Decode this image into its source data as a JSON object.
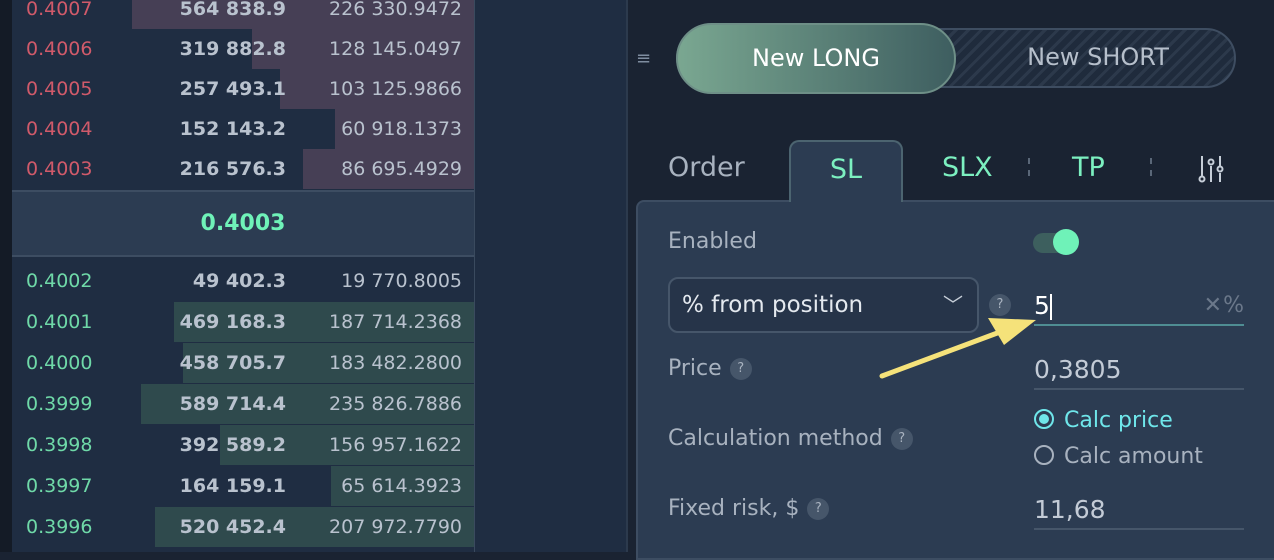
{
  "orderbook": {
    "asks": [
      {
        "price": "0.4007",
        "amount": "564 838.9",
        "total": "226 330.9472",
        "depth": 0.74
      },
      {
        "price": "0.4006",
        "amount": "319 882.8",
        "total": "128 145.0497",
        "depth": 0.48
      },
      {
        "price": "0.4005",
        "amount": "257 493.1",
        "total": "103 125.9866",
        "depth": 0.42
      },
      {
        "price": "0.4004",
        "amount": "152 143.2",
        "total": "60 918.1373",
        "depth": 0.3
      },
      {
        "price": "0.4003",
        "amount": "216 576.3",
        "total": "86 695.4929",
        "depth": 0.37
      }
    ],
    "last_price": "0.4003",
    "bids": [
      {
        "price": "0.4002",
        "amount": "49 402.3",
        "total": "19 770.8005",
        "depth": 0.0
      },
      {
        "price": "0.4001",
        "amount": "469 168.3",
        "total": "187 714.2368",
        "depth": 0.65
      },
      {
        "price": "0.4000",
        "amount": "458 705.7",
        "total": "183 482.2800",
        "depth": 0.63
      },
      {
        "price": "0.3999",
        "amount": "589 714.4",
        "total": "235 826.7886",
        "depth": 0.72
      },
      {
        "price": "0.3998",
        "amount": "392 589.2",
        "total": "156 957.1622",
        "depth": 0.55
      },
      {
        "price": "0.3997",
        "amount": "164 159.1",
        "total": "65 614.3923",
        "depth": 0.31
      },
      {
        "price": "0.3996",
        "amount": "520 452.4",
        "total": "207 972.7790",
        "depth": 0.69
      }
    ]
  },
  "side_switch": {
    "long": "New LONG",
    "short": "New SHORT"
  },
  "tabs": {
    "order": "Order",
    "sl": "SL",
    "slx": "SLX",
    "tp": "TP"
  },
  "form": {
    "enabled_label": "Enabled",
    "enabled": true,
    "mode_select": "% from position",
    "help": "?",
    "percent_value": "5",
    "clear": "✕",
    "unit": "%",
    "price_label": "Price",
    "price_value": "0,3805",
    "calc_label": "Calculation method",
    "calc_price": "Calc price",
    "calc_amount": "Calc amount",
    "risk_label": "Fixed risk, $",
    "risk_value": "11,68"
  },
  "colors": {
    "ask": "#d05a6a",
    "bid": "#6fd9a8",
    "accent": "#6ff2b8",
    "annotation_arrow": "#f5e27a"
  }
}
